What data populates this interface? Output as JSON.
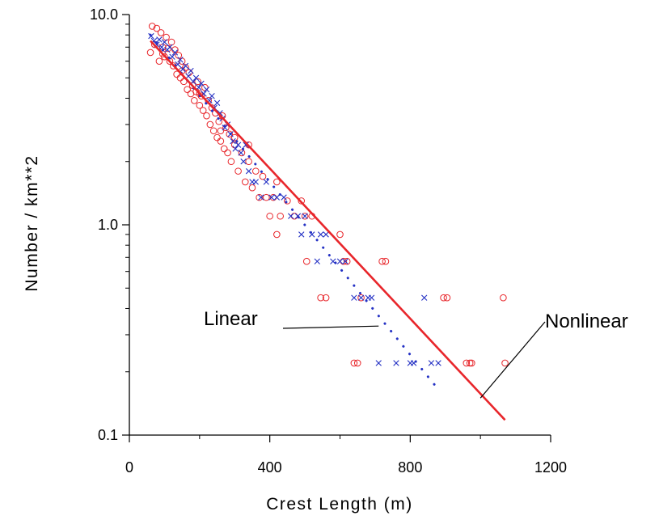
{
  "chart_data": {
    "type": "scatter",
    "title": "",
    "xlabel": "Crest Length (m)",
    "ylabel": "Number / km**2",
    "xlim": [
      0,
      1200
    ],
    "ylim": [
      0.1,
      10
    ],
    "yscale": "log",
    "x_ticks": [
      0,
      400,
      800,
      1200
    ],
    "x_tick_labels": [
      "0",
      "400",
      "800",
      "1200"
    ],
    "y_ticks": [
      0.1,
      1.0,
      10.0
    ],
    "y_tick_labels": [
      "0.1",
      "1.0",
      "10.0"
    ],
    "grid": false,
    "legend": "none",
    "annotations": [
      {
        "text": "Linear",
        "points_to": [
          710,
          0.33
        ]
      },
      {
        "text": "Nonlinear",
        "points_to": [
          1000,
          0.15
        ]
      }
    ],
    "series": [
      {
        "marker": "circle",
        "color": "#e8262b",
        "points": [
          [
            60,
            6.6
          ],
          [
            65,
            8.8
          ],
          [
            72,
            7.2
          ],
          [
            78,
            8.6
          ],
          [
            85,
            6.0
          ],
          [
            90,
            8.2
          ],
          [
            95,
            7.0
          ],
          [
            100,
            6.3
          ],
          [
            105,
            7.8
          ],
          [
            110,
            6.9
          ],
          [
            115,
            6.0
          ],
          [
            120,
            7.4
          ],
          [
            125,
            5.7
          ],
          [
            130,
            6.8
          ],
          [
            135,
            5.2
          ],
          [
            140,
            6.4
          ],
          [
            145,
            5.0
          ],
          [
            150,
            6.0
          ],
          [
            155,
            4.8
          ],
          [
            160,
            5.6
          ],
          [
            165,
            4.4
          ],
          [
            170,
            5.3
          ],
          [
            175,
            4.2
          ],
          [
            180,
            4.6
          ],
          [
            185,
            3.9
          ],
          [
            190,
            4.3
          ],
          [
            195,
            4.8
          ],
          [
            200,
            3.7
          ],
          [
            205,
            4.1
          ],
          [
            210,
            3.5
          ],
          [
            215,
            4.5
          ],
          [
            220,
            3.3
          ],
          [
            225,
            3.9
          ],
          [
            230,
            3.0
          ],
          [
            235,
            3.6
          ],
          [
            240,
            2.8
          ],
          [
            245,
            3.4
          ],
          [
            250,
            2.6
          ],
          [
            255,
            3.1
          ],
          [
            260,
            2.5
          ],
          [
            265,
            3.3
          ],
          [
            270,
            2.3
          ],
          [
            275,
            2.9
          ],
          [
            280,
            2.2
          ],
          [
            285,
            2.7
          ],
          [
            290,
            2.0
          ],
          [
            300,
            2.4
          ],
          [
            310,
            1.8
          ],
          [
            320,
            2.2
          ],
          [
            330,
            1.6
          ],
          [
            340,
            2.0
          ],
          [
            350,
            1.5
          ],
          [
            360,
            1.8
          ],
          [
            370,
            1.35
          ],
          [
            380,
            1.7
          ],
          [
            390,
            1.35
          ],
          [
            400,
            1.1
          ],
          [
            410,
            1.35
          ],
          [
            420,
            0.9
          ],
          [
            430,
            1.1
          ],
          [
            450,
            1.3
          ],
          [
            470,
            1.1
          ],
          [
            490,
            1.3
          ],
          [
            505,
            0.67
          ],
          [
            520,
            1.1
          ],
          [
            545,
            0.45
          ],
          [
            560,
            0.45
          ],
          [
            600,
            0.9
          ],
          [
            610,
            0.67
          ],
          [
            620,
            0.67
          ],
          [
            640,
            0.22
          ],
          [
            650,
            0.22
          ],
          [
            660,
            0.45
          ],
          [
            720,
            0.67
          ],
          [
            730,
            0.67
          ],
          [
            895,
            0.45
          ],
          [
            905,
            0.45
          ],
          [
            960,
            0.22
          ],
          [
            970,
            0.22
          ],
          [
            975,
            0.22
          ],
          [
            1065,
            0.45
          ],
          [
            1070,
            0.22
          ],
          [
            95,
            6.5
          ],
          [
            150,
            5.4
          ],
          [
            200,
            4.2
          ],
          [
            260,
            2.8
          ],
          [
            300,
            2.6
          ],
          [
            340,
            2.4
          ],
          [
            420,
            1.6
          ],
          [
            500,
            1.1
          ]
        ]
      },
      {
        "marker": "x",
        "color": "#2431c4",
        "points": [
          [
            62,
            7.9
          ],
          [
            70,
            7.5
          ],
          [
            78,
            7.2
          ],
          [
            85,
            7.6
          ],
          [
            92,
            7.0
          ],
          [
            100,
            7.4
          ],
          [
            108,
            6.8
          ],
          [
            115,
            7.0
          ],
          [
            122,
            6.3
          ],
          [
            130,
            6.6
          ],
          [
            138,
            5.8
          ],
          [
            145,
            6.1
          ],
          [
            152,
            5.5
          ],
          [
            160,
            5.7
          ],
          [
            168,
            5.1
          ],
          [
            175,
            5.4
          ],
          [
            182,
            4.8
          ],
          [
            190,
            5.0
          ],
          [
            198,
            4.5
          ],
          [
            205,
            4.7
          ],
          [
            212,
            4.2
          ],
          [
            220,
            4.4
          ],
          [
            228,
            3.9
          ],
          [
            235,
            4.1
          ],
          [
            242,
            3.6
          ],
          [
            250,
            3.8
          ],
          [
            258,
            3.4
          ],
          [
            265,
            3.2
          ],
          [
            272,
            2.9
          ],
          [
            280,
            3.0
          ],
          [
            288,
            2.7
          ],
          [
            295,
            2.5
          ],
          [
            302,
            2.3
          ],
          [
            310,
            2.4
          ],
          [
            318,
            2.2
          ],
          [
            325,
            2.0
          ],
          [
            332,
            2.4
          ],
          [
            340,
            1.8
          ],
          [
            350,
            1.6
          ],
          [
            360,
            1.6
          ],
          [
            375,
            1.35
          ],
          [
            390,
            1.6
          ],
          [
            405,
            1.35
          ],
          [
            420,
            1.35
          ],
          [
            440,
            1.35
          ],
          [
            460,
            1.1
          ],
          [
            480,
            1.1
          ],
          [
            490,
            0.9
          ],
          [
            500,
            1.1
          ],
          [
            520,
            0.9
          ],
          [
            535,
            0.67
          ],
          [
            545,
            0.9
          ],
          [
            560,
            0.9
          ],
          [
            580,
            0.67
          ],
          [
            600,
            0.67
          ],
          [
            615,
            0.67
          ],
          [
            640,
            0.45
          ],
          [
            660,
            0.45
          ],
          [
            680,
            0.45
          ],
          [
            690,
            0.45
          ],
          [
            710,
            0.22
          ],
          [
            760,
            0.22
          ],
          [
            800,
            0.22
          ],
          [
            810,
            0.22
          ],
          [
            840,
            0.45
          ],
          [
            860,
            0.22
          ],
          [
            880,
            0.22
          ]
        ]
      },
      {
        "name": "Linear",
        "style": "dotted",
        "color": "#2431c4",
        "x": [
          60,
          880
        ],
        "y": [
          8.0,
          0.165
        ]
      },
      {
        "name": "Nonlinear",
        "style": "solid",
        "color": "#e8262b",
        "x": [
          60,
          1070
        ],
        "y": [
          7.5,
          0.118
        ]
      }
    ]
  }
}
